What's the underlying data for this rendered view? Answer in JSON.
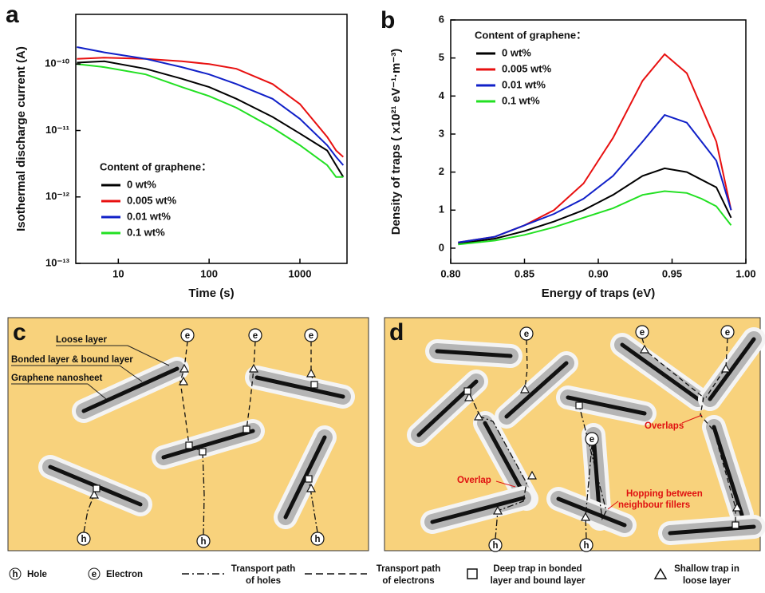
{
  "chart_data": [
    {
      "type": "line",
      "panel_label": "a",
      "xlabel": "Time (s)",
      "ylabel": "Isothermal discharge current (A)",
      "xscale": "log",
      "yscale": "log",
      "xlim": [
        3.4,
        3300
      ],
      "ylim": [
        1e-13,
        5.6e-10
      ],
      "xticks": [
        10,
        100,
        1000
      ],
      "yticks": [
        {
          "value": 1e-13,
          "label": "10⁻¹³"
        },
        {
          "value": 1e-12,
          "label": "10⁻¹²"
        },
        {
          "value": 1e-11,
          "label": "10⁻¹¹"
        },
        {
          "value": 1e-10,
          "label": "10⁻¹⁰"
        }
      ],
      "legend_title": "Content of graphene：",
      "legend": "lower left",
      "x": [
        3.5,
        7,
        20,
        50,
        100,
        200,
        500,
        1000,
        2000,
        2500,
        3000
      ],
      "series": [
        {
          "name": "0 wt%",
          "color": "#000000",
          "values": [
            1.05e-10,
            1.1e-10,
            8.5e-11,
            6e-11,
            4.5e-11,
            3e-11,
            1.6e-11,
            9e-12,
            5e-12,
            3e-12,
            2e-12
          ]
        },
        {
          "name": "0.005 wt%",
          "color": "#e81010",
          "values": [
            1.2e-10,
            1.25e-10,
            1.2e-10,
            1.1e-10,
            1e-10,
            8.5e-11,
            5e-11,
            2.5e-11,
            8e-12,
            5e-12,
            4e-12
          ]
        },
        {
          "name": "0.01 wt%",
          "color": "#1020c8",
          "values": [
            1.8e-10,
            1.5e-10,
            1.2e-10,
            9e-11,
            7e-11,
            5e-11,
            3e-11,
            1.5e-11,
            6e-12,
            4e-12,
            3e-12
          ]
        },
        {
          "name": "0.1 wt%",
          "color": "#22e022",
          "values": [
            1e-10,
            9e-11,
            7e-11,
            4.5e-11,
            3.3e-11,
            2.2e-11,
            1.1e-11,
            6e-12,
            3e-12,
            2e-12,
            2e-12
          ]
        }
      ]
    },
    {
      "type": "line",
      "panel_label": "b",
      "xlabel": "Energy of traps (eV)",
      "ylabel": "Density of traps ( x10²¹ eV⁻¹·m⁻³)",
      "xlim": [
        0.8,
        1.0
      ],
      "ylim": [
        -0.4,
        6
      ],
      "xticks": [
        {
          "value": 0.8,
          "label": "0.80"
        },
        0.85,
        {
          "value": 0.9,
          "label": "0.90"
        },
        0.95,
        {
          "value": 1.0,
          "label": "1.00"
        }
      ],
      "yticks": [
        0,
        1,
        2,
        3,
        4,
        5,
        6
      ],
      "legend_title": "Content of graphene：",
      "legend": "upper left",
      "x": [
        0.805,
        0.83,
        0.85,
        0.87,
        0.89,
        0.91,
        0.93,
        0.945,
        0.96,
        0.97,
        0.98,
        0.99
      ],
      "series": [
        {
          "name": "0 wt%",
          "color": "#000000",
          "values": [
            0.12,
            0.25,
            0.45,
            0.7,
            1.0,
            1.4,
            1.9,
            2.1,
            2.0,
            1.8,
            1.6,
            0.8
          ]
        },
        {
          "name": "0.005 wt%",
          "color": "#e81010",
          "values": [
            0.15,
            0.3,
            0.6,
            1.0,
            1.7,
            2.9,
            4.4,
            5.1,
            4.6,
            3.7,
            2.8,
            1.0
          ]
        },
        {
          "name": "0.01 wt%",
          "color": "#1020c8",
          "values": [
            0.15,
            0.3,
            0.6,
            0.9,
            1.3,
            1.9,
            2.8,
            3.5,
            3.3,
            2.8,
            2.3,
            1.0
          ]
        },
        {
          "name": "0.1 wt%",
          "color": "#22e022",
          "values": [
            0.1,
            0.2,
            0.35,
            0.55,
            0.8,
            1.05,
            1.4,
            1.5,
            1.45,
            1.3,
            1.1,
            0.6
          ]
        }
      ]
    }
  ],
  "panels": {
    "c": {
      "label": "c",
      "loose_layer": "Loose layer",
      "bonded_layer": "Bonded layer & bound layer",
      "nanosheet": "Graphene nanosheet"
    },
    "d": {
      "label": "d",
      "overlaps": "Overlaps",
      "overlap": "Overlap",
      "hopping": [
        "Hopping between",
        "neighbour fillers"
      ]
    }
  },
  "symbols": {
    "hole": "h",
    "electron": "e"
  },
  "legend": {
    "hole": "Hole",
    "electron": "Electron",
    "hole_path": [
      "Transport path",
      "of holes"
    ],
    "electron_path": [
      "Transport path",
      "of electrons"
    ],
    "deep_trap": [
      "Deep trap in bonded",
      "layer and bound layer"
    ],
    "shallow_trap": [
      "Shallow trap in",
      "loose layer"
    ]
  }
}
